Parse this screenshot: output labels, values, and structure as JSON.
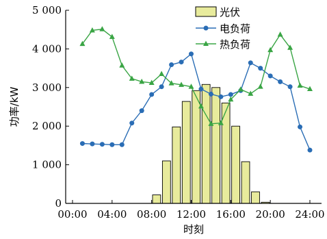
{
  "chart_data": {
    "type": "bar+line",
    "xlabel": "时刻",
    "ylabel": "功率/kW",
    "xlim": [
      0,
      24
    ],
    "ylim": [
      0,
      5000
    ],
    "x_ticks": [
      "00:00",
      "04:00",
      "08:00",
      "12:00",
      "16:00",
      "20:00",
      "24:00"
    ],
    "y_ticks": [
      "0",
      "1 000",
      "2 000",
      "3 000",
      "4 000",
      "5 000"
    ],
    "x": [
      1,
      2,
      3,
      4,
      5,
      6,
      7,
      8,
      9,
      10,
      11,
      12,
      13,
      14,
      15,
      16,
      17,
      18,
      19,
      20,
      21,
      22,
      23,
      24
    ],
    "series": [
      {
        "name": "光伏",
        "kind": "bar",
        "color": "#e8eb9c",
        "values": [
          0,
          0,
          0,
          0,
          0,
          0,
          0,
          0,
          220,
          1100,
          1980,
          2640,
          2920,
          3080,
          3000,
          2600,
          2000,
          1080,
          300,
          30,
          0,
          0,
          0,
          0
        ]
      },
      {
        "name": "电负荷",
        "kind": "line",
        "marker": "circle",
        "color": "#2a6db5",
        "values": [
          1550,
          1540,
          1530,
          1520,
          1520,
          2080,
          2400,
          2820,
          3020,
          3590,
          3660,
          3870,
          2960,
          2830,
          2760,
          2820,
          2920,
          3640,
          3500,
          3300,
          3150,
          3020,
          1980,
          1380
        ]
      },
      {
        "name": "热负荷",
        "kind": "line",
        "marker": "triangle",
        "color": "#3aa545",
        "values": [
          4130,
          4480,
          4510,
          4310,
          3570,
          3230,
          3150,
          3120,
          3350,
          3110,
          3070,
          3020,
          2510,
          2060,
          2080,
          2690,
          2950,
          2840,
          3020,
          3970,
          4370,
          4030,
          3050,
          2960
        ]
      }
    ],
    "legend": {
      "position": "top-right"
    }
  }
}
